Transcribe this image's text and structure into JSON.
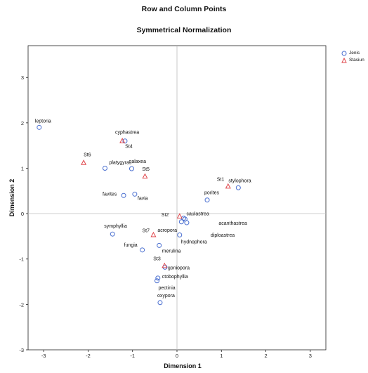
{
  "chart_data": {
    "type": "scatter",
    "title": "Row and Column Points",
    "subtitle": "Symmetrical Normalization",
    "xlabel": "Dimension 1",
    "ylabel": "Dimension 2",
    "xlim": [
      -3.35,
      3.35
    ],
    "ylim": [
      -3.0,
      3.7
    ],
    "xticks": [
      -3,
      -2,
      -1,
      0,
      1,
      2,
      3
    ],
    "yticks": [
      -3,
      -2,
      -1,
      0,
      1,
      2,
      3
    ],
    "reference_lines": {
      "x": 0,
      "y": 0
    },
    "legend_position": "top-right",
    "colors": {
      "Jenis": "#4a6fd0",
      "Stasiun": "#e0474c"
    },
    "series": [
      {
        "name": "Jenis",
        "marker": "circle",
        "points": [
          {
            "label": "leptoria",
            "x": -3.1,
            "y": 1.9
          },
          {
            "label": "cyphastrea",
            "x": -1.17,
            "y": 1.6
          },
          {
            "label": "platygyra",
            "x": -1.62,
            "y": 1.0
          },
          {
            "label": "galaxea",
            "x": -1.02,
            "y": 0.99
          },
          {
            "label": "favites",
            "x": -1.2,
            "y": 0.4
          },
          {
            "label": "favia",
            "x": -0.95,
            "y": 0.43
          },
          {
            "label": "stylophora",
            "x": 1.38,
            "y": 0.57
          },
          {
            "label": "porites",
            "x": 0.68,
            "y": 0.3
          },
          {
            "label": "caulastrea",
            "x": 0.15,
            "y": -0.1
          },
          {
            "label": "acanthastrea",
            "x": 0.18,
            "y": -0.12
          },
          {
            "label": "acropora",
            "x": 0.1,
            "y": -0.18
          },
          {
            "label": "diploastrea",
            "x": 0.22,
            "y": -0.2
          },
          {
            "label": "hydnophora",
            "x": 0.06,
            "y": -0.47
          },
          {
            "label": "symphyllia",
            "x": -1.45,
            "y": -0.45
          },
          {
            "label": "fungia",
            "x": -0.78,
            "y": -0.8
          },
          {
            "label": "merulina",
            "x": -0.4,
            "y": -0.7
          },
          {
            "label": "goniopora",
            "x": -0.27,
            "y": -1.18
          },
          {
            "label": "ctobophyllia",
            "x": -0.43,
            "y": -1.42
          },
          {
            "label": "pectinia",
            "x": -0.45,
            "y": -1.48
          },
          {
            "label": "oxypora",
            "x": -0.38,
            "y": -1.96
          }
        ]
      },
      {
        "name": "Stasiun",
        "marker": "triangle",
        "points": [
          {
            "label": "St1",
            "x": 1.15,
            "y": 0.6
          },
          {
            "label": "St4",
            "x": -1.23,
            "y": 1.6
          },
          {
            "label": "St5",
            "x": -0.72,
            "y": 0.82
          },
          {
            "label": "St6",
            "x": -2.1,
            "y": 1.12
          },
          {
            "label": "St2",
            "x": 0.06,
            "y": -0.06
          },
          {
            "label": "St7",
            "x": -0.53,
            "y": -0.47
          },
          {
            "label": "St3",
            "x": -0.28,
            "y": -1.15
          }
        ]
      }
    ]
  }
}
